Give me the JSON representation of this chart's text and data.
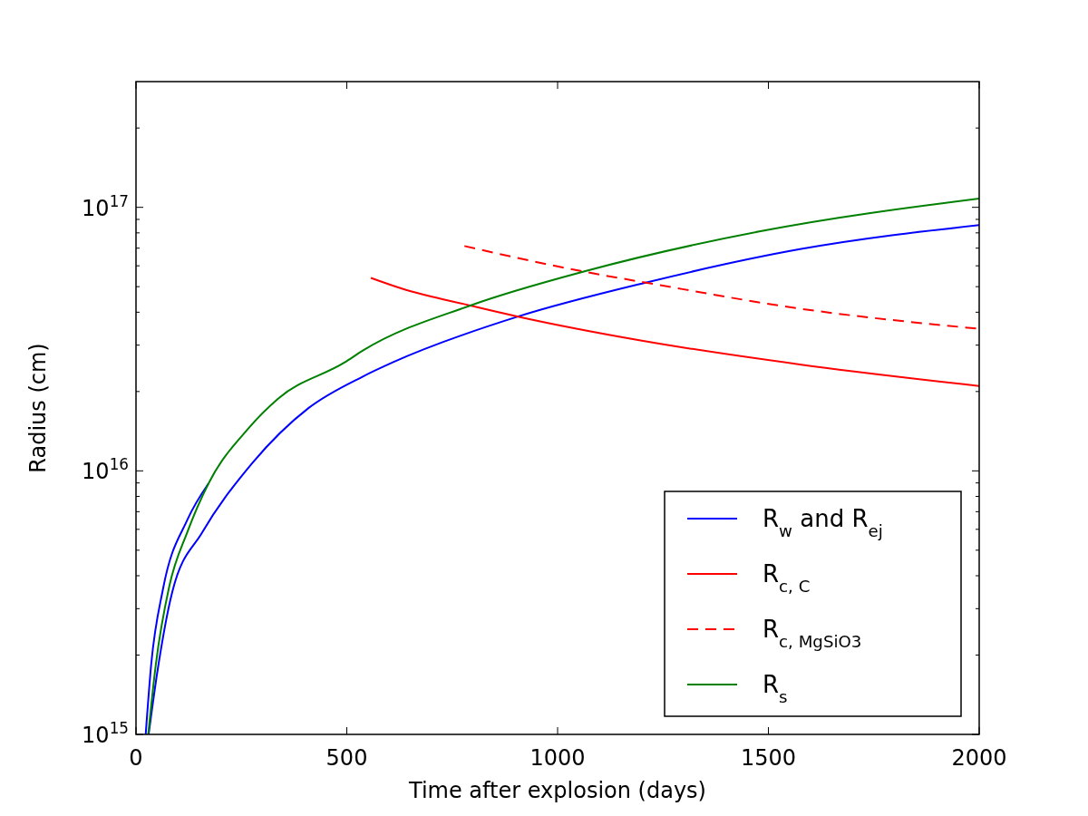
{
  "chart_data": {
    "type": "line",
    "xlabel": "Time after explosion (days)",
    "ylabel": "Radius (cm)",
    "xlim": [
      0,
      2000
    ],
    "xticks": [
      0,
      500,
      1000,
      1500,
      2000
    ],
    "ylim": [
      1000000000000000.0,
      3e+17
    ],
    "yticks": [
      {
        "value": 1000000000000000.0,
        "label": "10$^{15}$"
      },
      {
        "value": 1e+16,
        "label": "10$^{16}$"
      },
      {
        "value": 1e+17,
        "label": "10$^{17}$"
      }
    ],
    "log": "y",
    "grid": false,
    "legend": "bottom right",
    "series": [
      {
        "name": "R$_{w}$ and R$_{ej}$",
        "color": "#0000ff",
        "line_style": "solid",
        "x": [
          23,
          36,
          64,
          122,
          172,
          null,
          30,
          50,
          86,
          158,
          265,
          409,
          538,
          609,
          906,
          1209,
          1578,
          2000
        ],
        "values": [
          1000000000000000.0,
          1840000000000000.0,
          3560000000000000.0,
          6530000000000000.0,
          8960000000000000.0,
          null,
          1000000000000000.0,
          1700000000000000.0,
          3470000000000000.0,
          5870000000000000.0,
          1.02e+16,
          1.73e+16,
          2.28e+16,
          2.58e+16,
          3.85e+16,
          5.18e+16,
          6.95e+16,
          8.57e+16
        ]
      },
      {
        "name": "R$_{c, C}$",
        "color": "#ff0000",
        "line_style": "solid",
        "x": [
          557,
          632,
          793,
          906,
          1200,
          1578,
          2000
        ],
        "values": [
          5.4e+16,
          4.91e+16,
          4.24e+16,
          3.85e+16,
          3.12e+16,
          2.53e+16,
          2.1e+16
        ]
      },
      {
        "name": "R$_{c, MgSiO3}$",
        "color": "#ff0000",
        "line_style": "dashed",
        "x": [
          779,
          1068,
          1209,
          1578,
          2000
        ],
        "values": [
          7.13e+16,
          5.68e+16,
          5.18e+16,
          4.12e+16,
          3.46e+16
        ]
      },
      {
        "name": "R$_{s}$",
        "color": "#008000",
        "line_style": "solid",
        "x": [
          29,
          47,
          79,
          122,
          172,
          265,
          337,
          495,
          538,
          793,
          1068,
          1484,
          2000
        ],
        "values": [
          1000000000000000.0,
          1840000000000000.0,
          3650000000000000.0,
          5870000000000000.0,
          8960000000000000.0,
          1.44e+16,
          1.88e+16,
          2.58e+16,
          2.86e+16,
          4.24e+16,
          5.74e+16,
          8.13e+16,
          1.08e+17
        ]
      }
    ]
  }
}
